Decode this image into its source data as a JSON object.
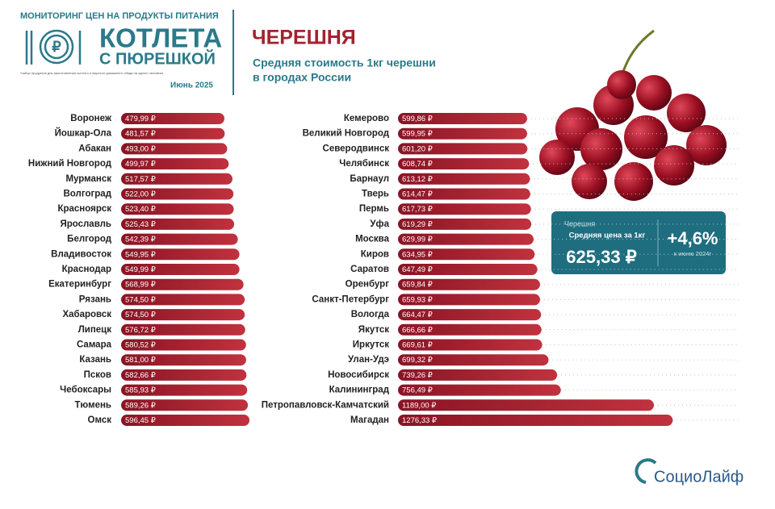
{
  "header": {
    "monitoring": "МОНИТОРИНГ ЦЕН НА ПРОДУКТЫ ПИТАНИЯ",
    "logo_line1": "КОТЛЕТА",
    "logo_line2": "С ПЮРЕШКОЙ",
    "footnote": "*набор продуктов для приготовления сытного и вкусного домашнего обеда на одного человека",
    "date": "Июнь 2025",
    "title": "ЧЕРЕШНЯ",
    "subtitle_line1": "Средняя стоимость 1кг черешни",
    "subtitle_line2": "в городах России"
  },
  "info_box": {
    "product": "Черешня",
    "caption": "Средняя цена за 1кг",
    "price": "625,33 ₽",
    "change": "+4,6%",
    "change_caption": "к июню 2024г"
  },
  "footer": {
    "brand": "СоциоЛайф"
  },
  "chart_data": [
    {
      "type": "bar",
      "orientation": "horizontal",
      "color": "#a3212f",
      "categories": [
        "Воронеж",
        "Йошкар-Ола",
        "Абакан",
        "Нижний Новгород",
        "Мурманск",
        "Волгоград",
        "Красноярск",
        "Ярославль",
        "Белгород",
        "Владивосток",
        "Краснодар",
        "Екатеринбург",
        "Рязань",
        "Хабаровск",
        "Липецк",
        "Самара",
        "Казань",
        "Псков",
        "Чебоксары",
        "Тюмень",
        "Омск"
      ],
      "values": [
        479.99,
        481.57,
        493.0,
        499.97,
        517.57,
        522.0,
        523.4,
        525.43,
        542.39,
        549.95,
        549.99,
        568.99,
        574.5,
        574.5,
        576.72,
        580.52,
        581.0,
        582.66,
        585.93,
        589.26,
        596.45
      ],
      "value_labels": [
        "479,99 ₽",
        "481,57 ₽",
        "493,00 ₽",
        "499,97 ₽",
        "517,57 ₽",
        "522,00 ₽",
        "523,40 ₽",
        "525,43 ₽",
        "542,39 ₽",
        "549,95 ₽",
        "549,99 ₽",
        "568,99 ₽",
        "574,50 ₽",
        "574,50 ₽",
        "576,72 ₽",
        "580,52 ₽",
        "581,00 ₽",
        "582,66 ₽",
        "585,93 ₽",
        "589,26 ₽",
        "596,45 ₽"
      ]
    },
    {
      "type": "bar",
      "orientation": "horizontal",
      "color": "#a3212f",
      "categories": [
        "Кемерово",
        "Великий Новгород",
        "Северодвинск",
        "Челябинск",
        "Барнаул",
        "Тверь",
        "Пермь",
        "Уфа",
        "Москва",
        "Киров",
        "Саратов",
        "Оренбург",
        "Санкт-Петербург",
        "Вологда",
        "Якутск",
        "Иркутск",
        "Улан-Удэ",
        "Новосибирск",
        "Калининград",
        "Петропавловск-Камчатский",
        "Магадан"
      ],
      "values": [
        599.86,
        599.95,
        601.2,
        608.74,
        613.12,
        614.47,
        617.73,
        619.29,
        629.99,
        634.95,
        647.49,
        659.84,
        659.93,
        664.47,
        666.66,
        669.61,
        699.32,
        739.26,
        756.49,
        1189.0,
        1276.33
      ],
      "value_labels": [
        "599,86 ₽",
        "599,95 ₽",
        "601,20 ₽",
        "608,74 ₽",
        "613,12 ₽",
        "614,47 ₽",
        "617,73 ₽",
        "619,29 ₽",
        "629,99 ₽",
        "634,95 ₽",
        "647,49 ₽",
        "659,84 ₽",
        "659,93 ₽",
        "664,47 ₽",
        "666,66 ₽",
        "669,61 ₽",
        "699,32 ₽",
        "739,26 ₽",
        "756,49 ₽",
        "1189,00 ₽",
        "1276,33 ₽"
      ]
    }
  ]
}
